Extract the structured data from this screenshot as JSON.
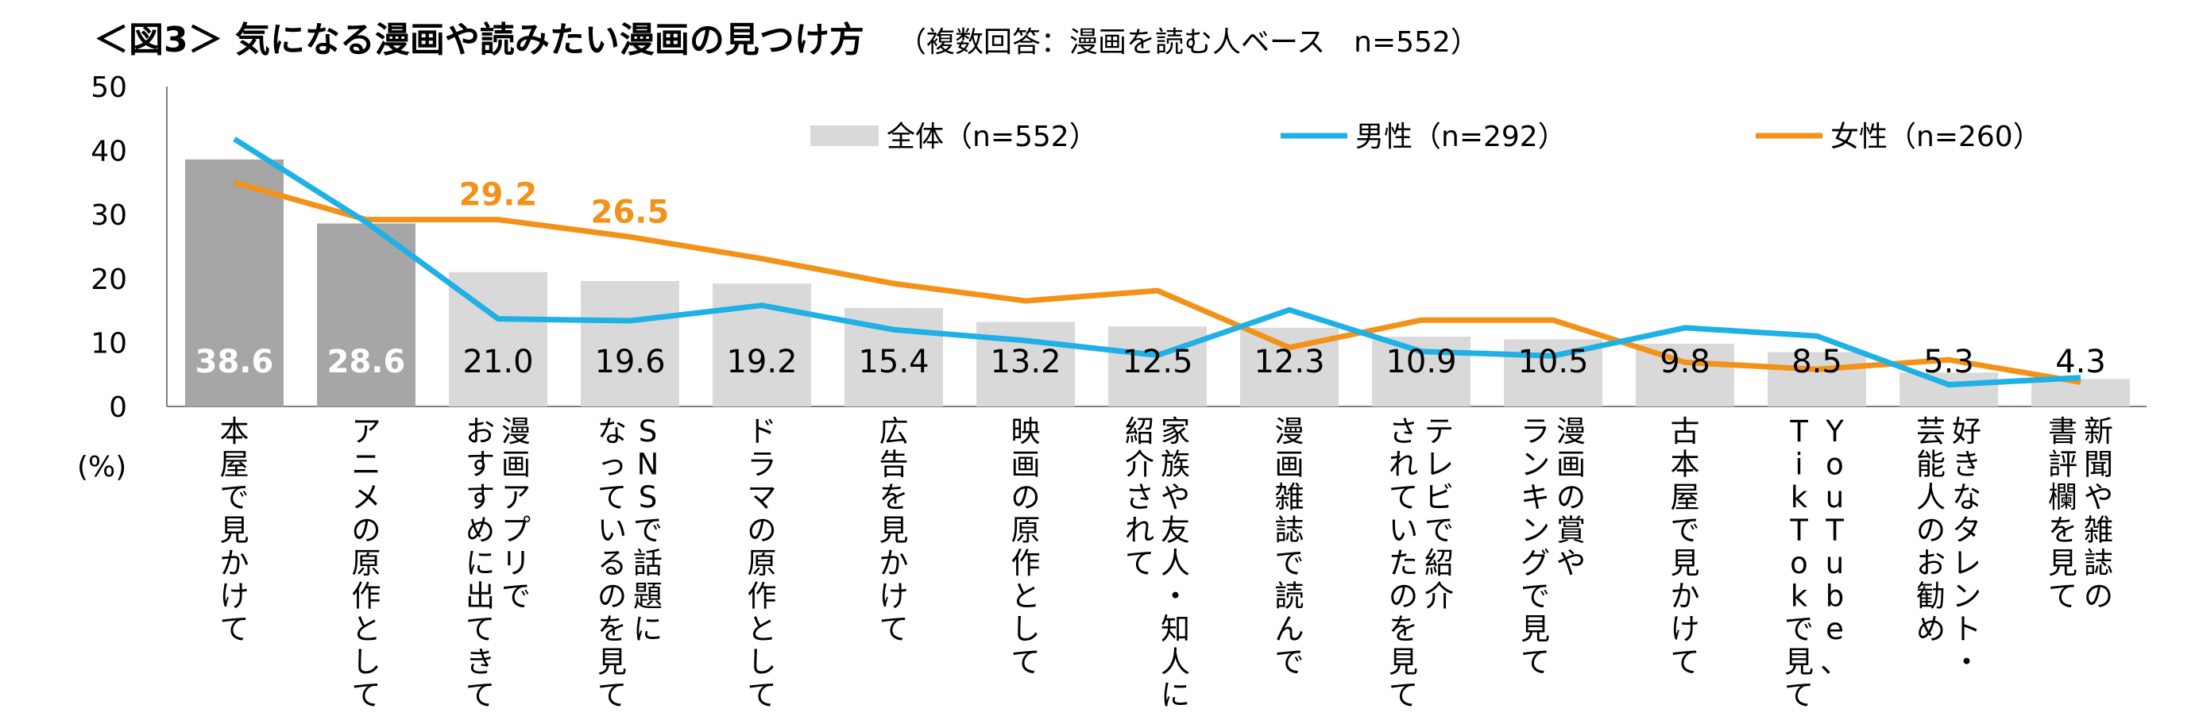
{
  "chart_data": {
    "type": "bar+line",
    "title": "＜図3＞ 気になる漫画や読みたい漫画の見つけ方",
    "subtitle": "（複数回答：漫画を読む人ベース　n=552）",
    "unit_label": "(%)",
    "ylim": [
      0,
      50
    ],
    "yticks": [
      "0",
      "10",
      "20",
      "30",
      "40",
      "50"
    ],
    "grid": false,
    "legend_position": "top",
    "categories": [
      "本屋で見かけて",
      "アニメの原作として",
      "漫画アプリで おすすめに出てきて",
      "SNSで話題に なっているのを見て",
      "ドラマの原作として",
      "広告を見かけて",
      "映画の原作として",
      "家族や友人・知人に 紹介されて",
      "漫画雑誌で読んで",
      "テレビで紹介 されていたのを見て",
      "漫画の賞や ランキングで見て",
      "古本屋で見かけて",
      "YouTube、 TikTokで見て",
      "好きなタレント・ 芸能人のお勧め",
      "新聞や雑誌の 書評欄を見て"
    ],
    "series": [
      {
        "name": "全体（n=552）",
        "type": "bar",
        "color": "#d9d9d9",
        "highlight_color": "#a6a6a6",
        "highlight_count": 2,
        "values": [
          38.6,
          28.6,
          21.0,
          19.6,
          19.2,
          15.4,
          13.2,
          12.5,
          12.3,
          10.9,
          10.5,
          9.8,
          8.5,
          5.3,
          4.3
        ],
        "labels": [
          "38.6",
          "28.6",
          "21.0",
          "19.6",
          "19.2",
          "15.4",
          "13.2",
          "12.5",
          "12.3",
          "10.9",
          "10.5",
          "9.8",
          "8.5",
          "5.3",
          "4.3"
        ]
      },
      {
        "name": "男性（n=292）",
        "type": "line",
        "color": "#1fb0e6",
        "values": [
          41.8,
          28.8,
          13.7,
          13.4,
          15.8,
          12.0,
          10.3,
          8.0,
          15.1,
          8.6,
          7.9,
          12.3,
          11.0,
          3.4,
          4.5
        ]
      },
      {
        "name": "女性（n=260）",
        "type": "line",
        "color": "#f39218",
        "values": [
          35.0,
          29.2,
          29.2,
          26.5,
          23.1,
          19.2,
          16.5,
          18.1,
          9.2,
          13.5,
          13.5,
          6.9,
          5.8,
          7.3,
          3.8
        ],
        "value_labels": [
          {
            "index": 2,
            "text": "29.2"
          },
          {
            "index": 3,
            "text": "26.5"
          }
        ]
      }
    ]
  }
}
